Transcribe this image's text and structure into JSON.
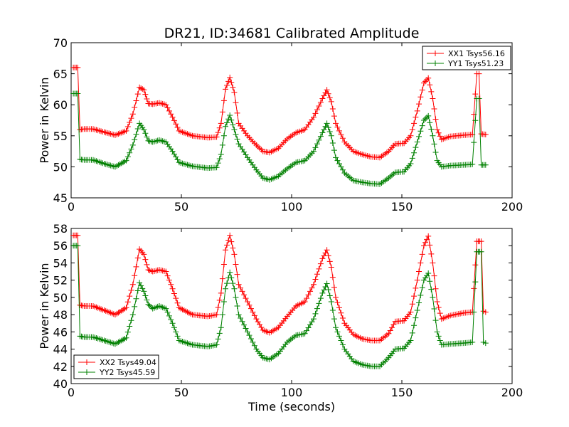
{
  "figure": {
    "title": "DR21, ID:34681 Calibrated Amplitude",
    "xlabel": "Time (seconds)"
  },
  "colors": {
    "red": "#ff0000",
    "green": "#008000"
  },
  "chart_data": [
    {
      "type": "line",
      "title": "DR21, ID:34681 Calibrated Amplitude",
      "xlabel": "",
      "ylabel": "Power in Kelvin",
      "xlim": [
        0,
        200
      ],
      "ylim": [
        45,
        70
      ],
      "xticks": [
        "0",
        "50",
        "100",
        "150",
        "200"
      ],
      "yticks": [
        "45",
        "50",
        "55",
        "60",
        "65",
        "70"
      ],
      "legend_position": "top-right",
      "grid": false,
      "series": [
        {
          "name": "XX1 Tsys56.16",
          "color": "#ff0000",
          "points": [
            [
              1,
              66
            ],
            [
              3,
              66
            ],
            [
              4,
              56
            ],
            [
              6,
              56.1
            ],
            [
              10,
              56.1
            ],
            [
              15,
              55.6
            ],
            [
              20,
              55.1
            ],
            [
              25,
              55.8
            ],
            [
              28,
              58.5
            ],
            [
              31,
              62.8
            ],
            [
              33,
              62.4
            ],
            [
              35,
              60.2
            ],
            [
              37,
              60.1
            ],
            [
              40,
              60.3
            ],
            [
              43,
              60
            ],
            [
              46,
              58
            ],
            [
              49,
              55.8
            ],
            [
              55,
              55
            ],
            [
              62,
              54.7
            ],
            [
              66,
              54.8
            ],
            [
              68,
              57
            ],
            [
              70,
              62.5
            ],
            [
              72,
              64.4
            ],
            [
              74,
              62
            ],
            [
              76,
              57
            ],
            [
              80,
              55
            ],
            [
              84,
              53.5
            ],
            [
              87,
              52.5
            ],
            [
              90,
              52.3
            ],
            [
              94,
              53
            ],
            [
              98,
              54.5
            ],
            [
              102,
              55.5
            ],
            [
              106,
              56
            ],
            [
              110,
              58
            ],
            [
              114,
              61
            ],
            [
              116,
              62.4
            ],
            [
              118,
              60.5
            ],
            [
              120,
              57
            ],
            [
              124,
              54
            ],
            [
              128,
              52.5
            ],
            [
              132,
              52
            ],
            [
              136,
              51.6
            ],
            [
              140,
              51.5
            ],
            [
              144,
              52.5
            ],
            [
              147,
              53.7
            ],
            [
              151,
              53.8
            ],
            [
              154,
              55
            ],
            [
              157,
              59
            ],
            [
              160,
              63.5
            ],
            [
              162,
              64.3
            ],
            [
              164,
              61
            ],
            [
              166,
              56
            ],
            [
              168,
              54.4
            ],
            [
              172,
              54.9
            ],
            [
              178,
              55.1
            ],
            [
              182,
              55.2
            ],
            [
              184,
              65
            ],
            [
              185,
              65
            ],
            [
              186,
              55.3
            ],
            [
              188,
              55.2
            ]
          ]
        },
        {
          "name": "YY1 Tsys51.23",
          "color": "#008000",
          "points": [
            [
              1,
              61.8
            ],
            [
              3,
              61.8
            ],
            [
              4,
              51.2
            ],
            [
              6,
              51.1
            ],
            [
              10,
              51.1
            ],
            [
              15,
              50.5
            ],
            [
              20,
              50
            ],
            [
              25,
              51
            ],
            [
              28,
              53.5
            ],
            [
              31,
              57
            ],
            [
              33,
              56
            ],
            [
              35,
              54.2
            ],
            [
              37,
              54
            ],
            [
              40,
              54.3
            ],
            [
              43,
              54
            ],
            [
              46,
              52.5
            ],
            [
              49,
              50.7
            ],
            [
              55,
              50.1
            ],
            [
              62,
              49.8
            ],
            [
              66,
              49.9
            ],
            [
              68,
              52
            ],
            [
              70,
              56.5
            ],
            [
              72,
              58.3
            ],
            [
              74,
              56
            ],
            [
              76,
              53.7
            ],
            [
              80,
              51.5
            ],
            [
              84,
              49.5
            ],
            [
              87,
              48.2
            ],
            [
              90,
              47.9
            ],
            [
              94,
              48.5
            ],
            [
              98,
              49.7
            ],
            [
              102,
              50.7
            ],
            [
              106,
              51
            ],
            [
              110,
              52.5
            ],
            [
              114,
              55.5
            ],
            [
              116,
              57
            ],
            [
              118,
              55
            ],
            [
              120,
              51.5
            ],
            [
              124,
              49
            ],
            [
              128,
              47.8
            ],
            [
              132,
              47.5
            ],
            [
              136,
              47.3
            ],
            [
              140,
              47.2
            ],
            [
              144,
              48.2
            ],
            [
              147,
              49.1
            ],
            [
              151,
              49.2
            ],
            [
              154,
              50.5
            ],
            [
              157,
              54
            ],
            [
              160,
              57.5
            ],
            [
              162,
              58.2
            ],
            [
              164,
              55
            ],
            [
              166,
              51
            ],
            [
              168,
              50
            ],
            [
              172,
              50.2
            ],
            [
              178,
              50.3
            ],
            [
              182,
              50.4
            ],
            [
              184,
              61
            ],
            [
              185,
              61
            ],
            [
              186,
              50.3
            ],
            [
              188,
              50.3
            ]
          ]
        }
      ]
    },
    {
      "type": "line",
      "title": "",
      "xlabel": "Time (seconds)",
      "ylabel": "Power in Kelvin",
      "xlim": [
        0,
        200
      ],
      "ylim": [
        40,
        58
      ],
      "xticks": [
        "0",
        "50",
        "100",
        "150",
        "200"
      ],
      "yticks": [
        "40",
        "42",
        "44",
        "46",
        "48",
        "50",
        "52",
        "54",
        "56",
        "58"
      ],
      "legend_position": "bottom-left",
      "grid": false,
      "series": [
        {
          "name": "XX2 Tsys49.04",
          "color": "#ff0000",
          "points": [
            [
              1,
              57.2
            ],
            [
              3,
              57.2
            ],
            [
              4,
              49.1
            ],
            [
              6,
              49
            ],
            [
              10,
              49
            ],
            [
              15,
              48.5
            ],
            [
              20,
              48
            ],
            [
              25,
              48.8
            ],
            [
              28,
              51.5
            ],
            [
              31,
              55.6
            ],
            [
              33,
              55
            ],
            [
              35,
              53.2
            ],
            [
              37,
              53
            ],
            [
              40,
              53.2
            ],
            [
              43,
              53
            ],
            [
              46,
              51
            ],
            [
              49,
              48.8
            ],
            [
              55,
              48
            ],
            [
              62,
              47.8
            ],
            [
              66,
              48
            ],
            [
              68,
              50.5
            ],
            [
              70,
              55.5
            ],
            [
              72,
              57.2
            ],
            [
              74,
              55
            ],
            [
              76,
              51.5
            ],
            [
              80,
              49.5
            ],
            [
              84,
              47.5
            ],
            [
              87,
              46.2
            ],
            [
              90,
              45.9
            ],
            [
              94,
              46.5
            ],
            [
              98,
              47.8
            ],
            [
              102,
              49
            ],
            [
              106,
              49.5
            ],
            [
              110,
              51.5
            ],
            [
              114,
              54.5
            ],
            [
              116,
              55.5
            ],
            [
              118,
              53.5
            ],
            [
              120,
              50
            ],
            [
              124,
              47
            ],
            [
              128,
              45.7
            ],
            [
              132,
              45.2
            ],
            [
              136,
              45
            ],
            [
              140,
              45
            ],
            [
              144,
              45.8
            ],
            [
              147,
              47.2
            ],
            [
              151,
              47.3
            ],
            [
              154,
              48.3
            ],
            [
              157,
              52
            ],
            [
              160,
              56
            ],
            [
              162,
              57.1
            ],
            [
              164,
              54
            ],
            [
              166,
              49.5
            ],
            [
              168,
              47.5
            ],
            [
              172,
              47.9
            ],
            [
              178,
              48.2
            ],
            [
              182,
              48.3
            ],
            [
              184,
              56.5
            ],
            [
              186,
              56.5
            ],
            [
              187,
              48.4
            ],
            [
              188,
              48.3
            ]
          ]
        },
        {
          "name": "YY2 Tsys45.59",
          "color": "#008000",
          "points": [
            [
              1,
              56
            ],
            [
              3,
              56
            ],
            [
              4,
              45.5
            ],
            [
              6,
              45.4
            ],
            [
              10,
              45.4
            ],
            [
              15,
              45
            ],
            [
              20,
              44.6
            ],
            [
              25,
              45.3
            ],
            [
              28,
              48
            ],
            [
              31,
              51.7
            ],
            [
              33,
              50.7
            ],
            [
              35,
              49.2
            ],
            [
              37,
              48.7
            ],
            [
              40,
              49
            ],
            [
              43,
              48.7
            ],
            [
              46,
              47
            ],
            [
              49,
              45
            ],
            [
              55,
              44.5
            ],
            [
              62,
              44.3
            ],
            [
              66,
              44.5
            ],
            [
              68,
              46.5
            ],
            [
              70,
              51
            ],
            [
              72,
              52.9
            ],
            [
              74,
              51
            ],
            [
              76,
              48
            ],
            [
              80,
              46
            ],
            [
              84,
              44
            ],
            [
              87,
              43
            ],
            [
              90,
              42.8
            ],
            [
              94,
              43.5
            ],
            [
              98,
              44.8
            ],
            [
              102,
              45.6
            ],
            [
              106,
              45.8
            ],
            [
              110,
              47.5
            ],
            [
              114,
              50.5
            ],
            [
              116,
              51.6
            ],
            [
              118,
              49.5
            ],
            [
              120,
              46.5
            ],
            [
              124,
              44
            ],
            [
              128,
              42.6
            ],
            [
              132,
              42.2
            ],
            [
              136,
              42
            ],
            [
              140,
              42
            ],
            [
              144,
              43
            ],
            [
              147,
              44
            ],
            [
              151,
              44.1
            ],
            [
              154,
              45
            ],
            [
              157,
              48.5
            ],
            [
              160,
              52
            ],
            [
              162,
              52.8
            ],
            [
              164,
              50
            ],
            [
              166,
              46
            ],
            [
              168,
              44.5
            ],
            [
              172,
              44.6
            ],
            [
              178,
              44.7
            ],
            [
              182,
              44.8
            ],
            [
              184,
              55.3
            ],
            [
              186,
              55.3
            ],
            [
              187,
              44.8
            ],
            [
              188,
              44.7
            ]
          ]
        }
      ]
    }
  ]
}
